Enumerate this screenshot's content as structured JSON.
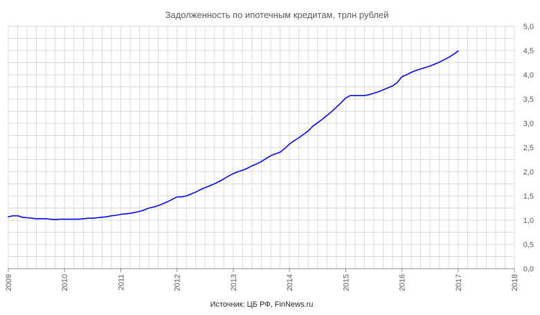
{
  "chart_data": {
    "type": "line",
    "title": "Задолженность по ипотечным кредитам, трлн рублей",
    "source": "Источник: ЦБ РФ, FinNews.ru",
    "xlabel": "",
    "ylabel": "",
    "xlim": [
      2009,
      2018
    ],
    "ylim": [
      0,
      5
    ],
    "x_ticks": [
      2009,
      2010,
      2011,
      2012,
      2013,
      2014,
      2015,
      2016,
      2017,
      2018
    ],
    "y_ticks": [
      "0,0",
      "0,5",
      "1,0",
      "1,5",
      "2,0",
      "2,5",
      "3,0",
      "3,5",
      "4,0",
      "4,5",
      "5,0"
    ],
    "y_tick_values": [
      0,
      0.5,
      1,
      1.5,
      2,
      2.5,
      3,
      3.5,
      4,
      4.5,
      5
    ],
    "x_minor_per_major": 6,
    "y_minor_step": 0.25,
    "grid": true,
    "legend": "none",
    "line_color": "#0000ff",
    "grid_color": "#d9d9d9",
    "series": [
      {
        "x": [
          2009.0,
          2009.083,
          2009.167,
          2009.25,
          2009.333,
          2009.417,
          2009.5,
          2009.583,
          2009.667,
          2009.75,
          2009.833,
          2009.917,
          2010.0,
          2010.083,
          2010.167,
          2010.25,
          2010.333,
          2010.417,
          2010.5,
          2010.583,
          2010.667,
          2010.75,
          2010.833,
          2010.917,
          2011.0,
          2011.083,
          2011.167,
          2011.25,
          2011.333,
          2011.417,
          2011.5,
          2011.583,
          2011.667,
          2011.75,
          2011.833,
          2011.917,
          2012.0,
          2012.083,
          2012.167,
          2012.25,
          2012.333,
          2012.417,
          2012.5,
          2012.583,
          2012.667,
          2012.75,
          2012.833,
          2012.917,
          2013.0,
          2013.083,
          2013.167,
          2013.25,
          2013.333,
          2013.417,
          2013.5,
          2013.583,
          2013.667,
          2013.75,
          2013.833,
          2013.917,
          2014.0,
          2014.083,
          2014.167,
          2014.25,
          2014.333,
          2014.417,
          2014.5,
          2014.583,
          2014.667,
          2014.75,
          2014.833,
          2014.917,
          2015.0,
          2015.083,
          2015.167,
          2015.25,
          2015.333,
          2015.417,
          2015.5,
          2015.583,
          2015.667,
          2015.75,
          2015.833,
          2015.917,
          2016.0,
          2016.083,
          2016.167,
          2016.25,
          2016.333,
          2016.417,
          2016.5,
          2016.583,
          2016.667,
          2016.75,
          2016.833,
          2016.917,
          2017.0
        ],
        "values": [
          1.07,
          1.09,
          1.09,
          1.06,
          1.05,
          1.04,
          1.03,
          1.03,
          1.03,
          1.02,
          1.01,
          1.02,
          1.02,
          1.02,
          1.02,
          1.02,
          1.03,
          1.04,
          1.04,
          1.05,
          1.06,
          1.07,
          1.09,
          1.1,
          1.12,
          1.13,
          1.14,
          1.16,
          1.18,
          1.21,
          1.25,
          1.27,
          1.3,
          1.34,
          1.38,
          1.43,
          1.48,
          1.48,
          1.5,
          1.54,
          1.58,
          1.63,
          1.67,
          1.71,
          1.75,
          1.8,
          1.85,
          1.91,
          1.96,
          2.0,
          2.03,
          2.07,
          2.12,
          2.16,
          2.21,
          2.27,
          2.33,
          2.37,
          2.4,
          2.48,
          2.57,
          2.64,
          2.7,
          2.77,
          2.84,
          2.94,
          3.01,
          3.08,
          3.16,
          3.24,
          3.33,
          3.42,
          3.52,
          3.57,
          3.57,
          3.57,
          3.57,
          3.59,
          3.62,
          3.65,
          3.69,
          3.73,
          3.77,
          3.84,
          3.96,
          4.0,
          4.05,
          4.09,
          4.12,
          4.15,
          4.18,
          4.22,
          4.26,
          4.31,
          4.36,
          4.42,
          4.49
        ]
      }
    ]
  }
}
